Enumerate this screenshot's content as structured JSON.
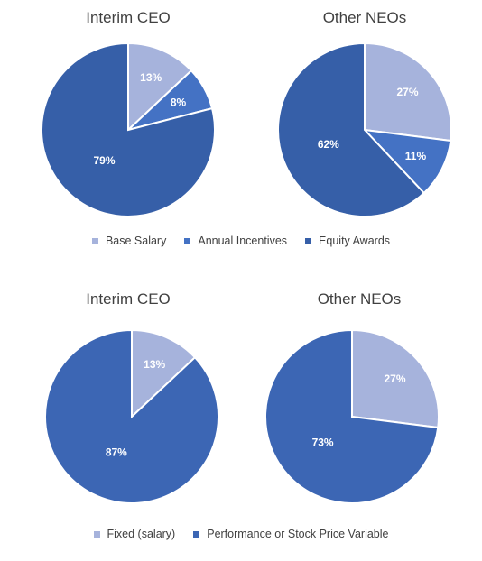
{
  "chart_data": [
    {
      "type": "pie",
      "title": "Interim CEO",
      "categories": [
        "Base Salary",
        "Annual Incentives",
        "Equity Awards"
      ],
      "values": [
        13,
        8,
        79
      ],
      "labels": [
        "13%",
        "8%",
        "79%"
      ],
      "colors": [
        "#a6b3dc",
        "#4472c4",
        "#365fa8"
      ]
    },
    {
      "type": "pie",
      "title": "Other NEOs",
      "categories": [
        "Base Salary",
        "Annual Incentives",
        "Equity Awards"
      ],
      "values": [
        27,
        11,
        62
      ],
      "labels": [
        "27%",
        "11%",
        "62%"
      ],
      "colors": [
        "#a6b3dc",
        "#4472c4",
        "#365fa8"
      ]
    },
    {
      "type": "pie",
      "title": "Interim CEO",
      "categories": [
        "Fixed (salary)",
        "Performance or Stock Price Variable"
      ],
      "values": [
        13,
        87
      ],
      "labels": [
        "13%",
        "87%"
      ],
      "colors": [
        "#a6b3dc",
        "#3c66b4"
      ]
    },
    {
      "type": "pie",
      "title": "Other NEOs",
      "categories": [
        "Fixed (salary)",
        "Performance or Stock Price Variable"
      ],
      "values": [
        27,
        73
      ],
      "labels": [
        "27%",
        "73%"
      ],
      "colors": [
        "#a6b3dc",
        "#3c66b4"
      ]
    }
  ],
  "legends": [
    {
      "items": [
        {
          "label": "Base Salary",
          "color": "#a6b3dc"
        },
        {
          "label": "Annual Incentives",
          "color": "#4472c4"
        },
        {
          "label": "Equity Awards",
          "color": "#365fa8"
        }
      ]
    },
    {
      "items": [
        {
          "label": "Fixed (salary)",
          "color": "#a6b3dc"
        },
        {
          "label": "Performance or Stock Price Variable",
          "color": "#3c66b4"
        }
      ]
    }
  ]
}
